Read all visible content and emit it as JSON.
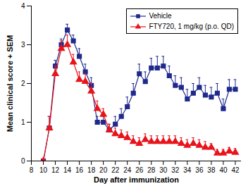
{
  "chart_data": {
    "type": "line",
    "x_label": "Day after immunization",
    "y_label": "Mean clinical score + SEM",
    "xlim": [
      8,
      43
    ],
    "xticks": [
      8,
      10,
      12,
      14,
      16,
      18,
      20,
      22,
      24,
      26,
      28,
      30,
      32,
      34,
      36,
      38,
      40,
      42
    ],
    "ylim": [
      0,
      4
    ],
    "yticks": [
      0,
      1,
      2,
      3,
      4
    ],
    "grid": false,
    "legend": "top-right",
    "x": [
      10,
      11,
      12,
      13,
      14,
      15,
      16,
      17,
      18,
      19,
      20,
      21,
      22,
      23,
      24,
      25,
      26,
      27,
      28,
      29,
      30,
      31,
      32,
      33,
      34,
      35,
      36,
      37,
      38,
      39,
      40,
      41,
      42
    ],
    "series": [
      {
        "name": "Vehicle",
        "color": "#1f2a8c",
        "marker": "square",
        "line_style": "solid",
        "values": [
          0,
          0.85,
          2.45,
          3.0,
          3.38,
          3.1,
          2.7,
          2.3,
          1.95,
          1.0,
          1.0,
          0.8,
          0.95,
          1.15,
          1.4,
          1.75,
          2.25,
          2.05,
          2.4,
          2.4,
          2.45,
          2.2,
          1.95,
          1.9,
          1.6,
          1.75,
          1.9,
          1.7,
          1.65,
          1.75,
          1.35,
          1.85,
          1.85
        ],
        "sem": [
          0,
          0.3,
          0.15,
          0.15,
          0.15,
          0.15,
          0.2,
          0.2,
          0.2,
          0.15,
          0.15,
          0.15,
          0.2,
          0.2,
          0.25,
          0.25,
          0.25,
          0.25,
          0.25,
          0.3,
          0.25,
          0.25,
          0.25,
          0.25,
          0.25,
          0.25,
          0.25,
          0.25,
          0.25,
          0.25,
          0.25,
          0.25,
          0.25
        ]
      },
      {
        "name": "FTY720, 1 mg/kg (p.o. QD)",
        "color": "#e8141b",
        "marker": "triangle",
        "line_style": "solid",
        "values": [
          0,
          0.85,
          2.25,
          2.9,
          3.0,
          2.55,
          2.1,
          2.05,
          1.8,
          1.35,
          1.2,
          0.8,
          0.7,
          0.65,
          0.6,
          0.5,
          0.45,
          0.55,
          0.5,
          0.5,
          0.5,
          0.5,
          0.5,
          0.45,
          0.4,
          0.45,
          0.4,
          0.35,
          0.35,
          0.2,
          0.2,
          0.25,
          0.22
        ],
        "sem": [
          0,
          0.3,
          0.2,
          0.2,
          0.25,
          0.2,
          0.2,
          0.2,
          0.2,
          0.2,
          0.15,
          0.15,
          0.15,
          0.15,
          0.15,
          0.15,
          0.15,
          0.15,
          0.15,
          0.15,
          0.15,
          0.15,
          0.15,
          0.15,
          0.15,
          0.15,
          0.15,
          0.15,
          0.1,
          0.1,
          0.1,
          0.1,
          0.1
        ]
      }
    ]
  }
}
